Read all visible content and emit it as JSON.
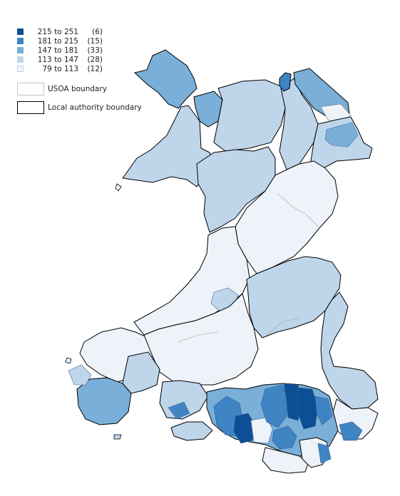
{
  "legend": {
    "classes": [
      {
        "range": "215 to 251",
        "count": "(6)",
        "color": "#0d4f95"
      },
      {
        "range": "181 to 215",
        "count": "(15)",
        "color": "#3f84c3"
      },
      {
        "range": "147 to 181",
        "count": "(33)",
        "color": "#79afd8"
      },
      {
        "range": "113 to 147",
        "count": "(28)",
        "color": "#bed5ea"
      },
      {
        "range": "79 to 113",
        "count": "(12)",
        "color": "#eef3fa"
      }
    ],
    "usoa_label": "USOA boundary",
    "la_label": "Local authority boundary"
  }
}
